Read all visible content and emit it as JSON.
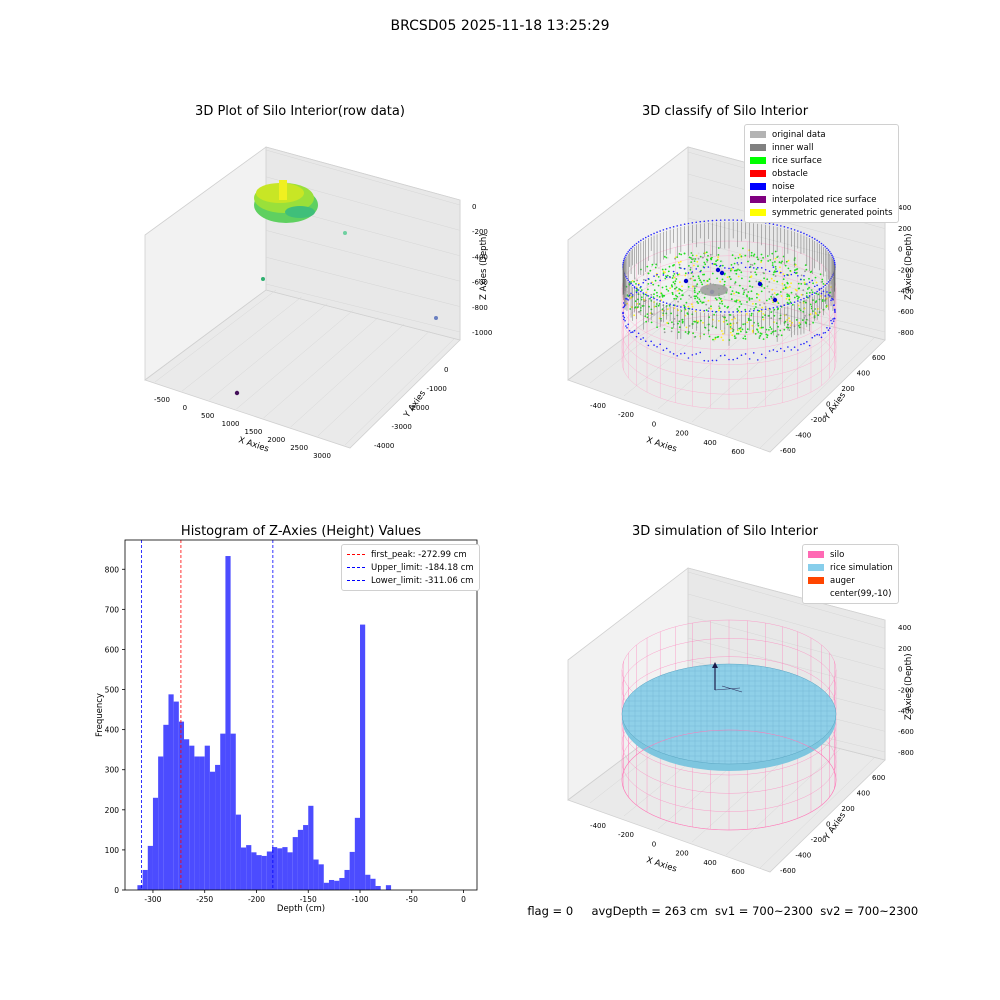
{
  "figure": {
    "suptitle": "BRCSD05 2025-11-18 13:25:29"
  },
  "panel1": {
    "title": "3D Plot of Silo Interior(row data)",
    "xlabel": "X Axies",
    "ylabel": "Y Axies",
    "zlabel": "Z Axies (Depth)",
    "xticks": [
      "-500",
      "0",
      "500",
      "1000",
      "1500",
      "2000",
      "2500",
      "3000"
    ],
    "yticks": [
      "0",
      "-1000",
      "-2000",
      "-3000",
      "-4000"
    ],
    "zticks": [
      "0",
      "-200",
      "-400",
      "-600",
      "-800",
      "-1000"
    ]
  },
  "panel2": {
    "title": "3D classify of Silo Interior",
    "xlabel": "X Axies",
    "ylabel": "Y Axies",
    "zlabel": "Z Axies (Depth)",
    "xticks": [
      "-400",
      "-200",
      "0",
      "200",
      "400",
      "600"
    ],
    "yticks": [
      "600",
      "400",
      "200",
      "0",
      "-200",
      "-400",
      "-600"
    ],
    "zticks": [
      "400",
      "200",
      "0",
      "-200",
      "-400",
      "-600",
      "-800"
    ],
    "legend": [
      {
        "label": "original data",
        "color": "#b3b3b3"
      },
      {
        "label": "inner wall",
        "color": "#808080"
      },
      {
        "label": "rice surface",
        "color": "#00ff00"
      },
      {
        "label": "obstacle",
        "color": "#ff0000"
      },
      {
        "label": "noise",
        "color": "#0000ff"
      },
      {
        "label": "interpolated rice surface",
        "color": "#800080"
      },
      {
        "label": "symmetric generated points",
        "color": "#ffff00"
      }
    ]
  },
  "panel4": {
    "title": "3D simulation of Silo Interior",
    "xlabel": "X Axies",
    "ylabel": "Y Axies",
    "zlabel": "Z Axies (Depth)",
    "xticks": [
      "-400",
      "-200",
      "0",
      "200",
      "400",
      "600"
    ],
    "yticks": [
      "600",
      "400",
      "200",
      "0",
      "-200",
      "-400",
      "-600"
    ],
    "zticks": [
      "400",
      "200",
      "0",
      "-200",
      "-400",
      "-600",
      "-800"
    ],
    "legend": [
      {
        "label": "silo",
        "color": "#ff69b4"
      },
      {
        "label": "rice simulation",
        "color": "#87ceeb"
      },
      {
        "label": "auger",
        "color": "#ff4500"
      },
      {
        "label": "center(99,-10)",
        "color": ""
      }
    ],
    "footer": {
      "flag": "flag = 0",
      "avg": "avgDepth = 263 cm",
      "sv1": "sv1 = 700~2300",
      "sv2": "sv2 = 700~2300"
    }
  },
  "chart_data": {
    "type": "bar",
    "title": "Histogram of Z-Axies (Height) Values",
    "xlabel": "Depth (cm)",
    "ylabel": "Frequency",
    "xlim": [
      -327,
      13
    ],
    "ylim": [
      0,
      873
    ],
    "xticks": [
      -300,
      -250,
      -200,
      -150,
      -100,
      -50,
      0
    ],
    "yticks": [
      0,
      100,
      200,
      300,
      400,
      500,
      600,
      700,
      800
    ],
    "bin_width": 5,
    "bins": [
      {
        "x": -312.5,
        "y": 12
      },
      {
        "x": -307.5,
        "y": 50
      },
      {
        "x": -302.5,
        "y": 110
      },
      {
        "x": -297.5,
        "y": 230
      },
      {
        "x": -292.5,
        "y": 333
      },
      {
        "x": -287.5,
        "y": 412
      },
      {
        "x": -282.5,
        "y": 488
      },
      {
        "x": -277.5,
        "y": 470
      },
      {
        "x": -272.5,
        "y": 420
      },
      {
        "x": -267.5,
        "y": 376
      },
      {
        "x": -262.5,
        "y": 360
      },
      {
        "x": -257.5,
        "y": 333
      },
      {
        "x": -252.5,
        "y": 333
      },
      {
        "x": -247.5,
        "y": 360
      },
      {
        "x": -242.5,
        "y": 295
      },
      {
        "x": -237.5,
        "y": 312
      },
      {
        "x": -232.5,
        "y": 390
      },
      {
        "x": -227.5,
        "y": 833
      },
      {
        "x": -222.5,
        "y": 390
      },
      {
        "x": -217.5,
        "y": 188
      },
      {
        "x": -212.5,
        "y": 106
      },
      {
        "x": -207.5,
        "y": 112
      },
      {
        "x": -202.5,
        "y": 94
      },
      {
        "x": -197.5,
        "y": 87
      },
      {
        "x": -192.5,
        "y": 85
      },
      {
        "x": -187.5,
        "y": 96
      },
      {
        "x": -182.5,
        "y": 107
      },
      {
        "x": -177.5,
        "y": 104
      },
      {
        "x": -172.5,
        "y": 107
      },
      {
        "x": -167.5,
        "y": 94
      },
      {
        "x": -162.5,
        "y": 132
      },
      {
        "x": -157.5,
        "y": 150
      },
      {
        "x": -152.5,
        "y": 162
      },
      {
        "x": -147.5,
        "y": 210
      },
      {
        "x": -142.5,
        "y": 76
      },
      {
        "x": -137.5,
        "y": 64
      },
      {
        "x": -132.5,
        "y": 18
      },
      {
        "x": -127.5,
        "y": 25
      },
      {
        "x": -122.5,
        "y": 23
      },
      {
        "x": -117.5,
        "y": 30
      },
      {
        "x": -112.5,
        "y": 50
      },
      {
        "x": -107.5,
        "y": 95
      },
      {
        "x": -102.5,
        "y": 180
      },
      {
        "x": -97.5,
        "y": 662
      },
      {
        "x": -92.5,
        "y": 38
      },
      {
        "x": -87.5,
        "y": 28
      },
      {
        "x": -82.5,
        "y": 10
      },
      {
        "x": -77.5,
        "y": 0
      },
      {
        "x": -72.5,
        "y": 12
      }
    ],
    "lines": [
      {
        "x": -272.99,
        "color": "#ff0000",
        "label": "first_peak: -272.99 cm"
      },
      {
        "x": -184.18,
        "color": "#0000ff",
        "label": "Upper_limit: -184.18 cm"
      },
      {
        "x": -311.06,
        "color": "#0000ff",
        "label": "Lower_limit: -311.06 cm"
      }
    ],
    "bar_color": "#4c4cff"
  }
}
